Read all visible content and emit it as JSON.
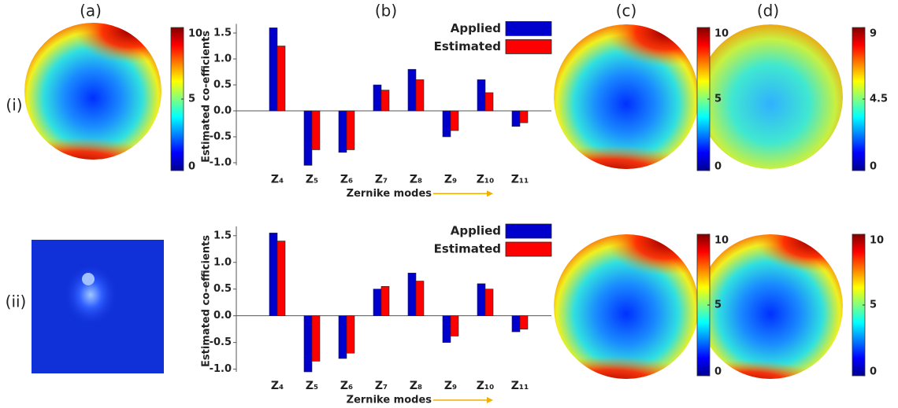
{
  "panel_labels": [
    "(a)",
    "(b)",
    "(c)",
    "(d)"
  ],
  "row_labels": [
    "(i)",
    "(ii)"
  ],
  "colorbars": [
    {
      "lim": [
        0,
        10
      ],
      "ticks": [
        0,
        5,
        10
      ]
    },
    {
      "lim": [
        0,
        10
      ],
      "ticks": [
        0,
        5,
        10
      ]
    },
    {
      "lim": [
        0,
        9
      ],
      "ticks": [
        0,
        4.5,
        9
      ]
    },
    {
      "lim": [
        0,
        10
      ],
      "ticks": [
        0,
        5,
        10
      ]
    },
    {
      "lim": [
        0,
        10
      ],
      "ticks": [
        0,
        5,
        10
      ]
    }
  ],
  "chart_data": [
    {
      "type": "bar",
      "y_label": "Estimated co-efficients",
      "x_label": "Zernike modes",
      "categories": [
        "Z₄",
        "Z₅",
        "Z₆",
        "Z₇",
        "Z₈",
        "Z₉",
        "Z₁₀",
        "Z₁₁"
      ],
      "series": [
        {
          "name": "Applied",
          "color": "#0000cc",
          "values": [
            1.6,
            -1.05,
            -0.8,
            0.5,
            0.8,
            -0.5,
            0.6,
            -0.3
          ]
        },
        {
          "name": "Estimated",
          "color": "#ff0000",
          "values": [
            1.25,
            -0.75,
            -0.75,
            0.4,
            0.6,
            -0.38,
            0.35,
            -0.23
          ]
        }
      ],
      "ylim": [
        -1.05,
        1.6
      ],
      "yticks": [
        {
          "value": 1.5,
          "label": "1.5"
        },
        {
          "value": 1,
          "label": "1.0"
        },
        {
          "value": 0.5,
          "label": "0.5"
        },
        {
          "value": 0,
          "label": "0.0"
        },
        {
          "value": -0.5,
          "label": "-0.5"
        },
        {
          "value": -1,
          "label": "-1.0"
        }
      ]
    },
    {
      "type": "bar",
      "y_label": "Estimated co-efficients",
      "x_label": "Zernike modes",
      "categories": [
        "Z₄",
        "Z₅",
        "Z₆",
        "Z₇",
        "Z₈",
        "Z₉",
        "Z₁₀",
        "Z₁₁"
      ],
      "series": [
        {
          "name": "Applied",
          "color": "#0000cc",
          "values": [
            1.55,
            -1.05,
            -0.8,
            0.5,
            0.8,
            -0.5,
            0.6,
            -0.3
          ]
        },
        {
          "name": "Estimated",
          "color": "#ff0000",
          "values": [
            1.4,
            -0.85,
            -0.7,
            0.55,
            0.65,
            -0.38,
            0.5,
            -0.25
          ]
        }
      ],
      "ylim": [
        -1.05,
        1.6
      ],
      "yticks": [
        {
          "value": 1.5,
          "label": "1.5"
        },
        {
          "value": 1,
          "label": "1.0"
        },
        {
          "value": 0.5,
          "label": "0.5"
        },
        {
          "value": 0,
          "label": "0.0"
        },
        {
          "value": -0.5,
          "label": "-0.5"
        },
        {
          "value": -1,
          "label": "-1.0"
        }
      ]
    }
  ]
}
